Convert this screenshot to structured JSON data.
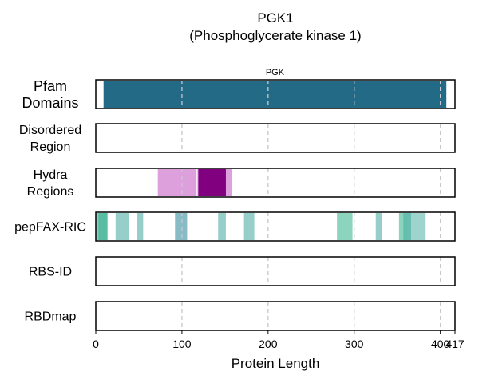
{
  "chart_data": {
    "type": "protein-domain-tracks",
    "title_line1": "PGK1",
    "title_line2": "(Phosphoglycerate kinase 1)",
    "xlabel": "Protein Length",
    "xlim": [
      0,
      417
    ],
    "xticks": [
      0,
      100,
      200,
      300,
      400,
      417
    ],
    "gridlines": [
      100,
      200,
      300,
      400
    ],
    "tracks": [
      {
        "name": "pfam",
        "label_lines": [
          "Pfam",
          "Domains"
        ],
        "segments": [
          {
            "start": 9,
            "end": 407,
            "color": "#236a86",
            "opacity": 1,
            "label": "PGK"
          }
        ]
      },
      {
        "name": "disordered",
        "label_lines": [
          "Disordered",
          "Region"
        ],
        "segments": []
      },
      {
        "name": "hydra",
        "label_lines": [
          "Hydra",
          "Regions"
        ],
        "segments": [
          {
            "start": 72,
            "end": 117,
            "color": "#dda0dd",
            "opacity": 1
          },
          {
            "start": 118,
            "end": 158,
            "color": "#dda0dd",
            "opacity": 1
          },
          {
            "start": 119,
            "end": 151,
            "color": "#800080",
            "opacity": 1
          }
        ]
      },
      {
        "name": "pepfax",
        "label_lines": [
          "pepFAX-RIC"
        ],
        "segments": [
          {
            "start": 0,
            "end": 14,
            "color": "#3fa89d",
            "opacity": 0.55
          },
          {
            "start": 3,
            "end": 13,
            "color": "#2fb08a",
            "opacity": 0.6
          },
          {
            "start": 23,
            "end": 38,
            "color": "#3fa89d",
            "opacity": 0.55
          },
          {
            "start": 48,
            "end": 55,
            "color": "#3fa89d",
            "opacity": 0.55
          },
          {
            "start": 92,
            "end": 106,
            "color": "#3fa89d",
            "opacity": 0.55
          },
          {
            "start": 92,
            "end": 106,
            "color": "#6e8fbf",
            "opacity": 0.3
          },
          {
            "start": 142,
            "end": 151,
            "color": "#3fa89d",
            "opacity": 0.55
          },
          {
            "start": 172,
            "end": 184,
            "color": "#3fa89d",
            "opacity": 0.55
          },
          {
            "start": 280,
            "end": 298,
            "color": "#2fb08a",
            "opacity": 0.55
          },
          {
            "start": 325,
            "end": 332,
            "color": "#3fa89d",
            "opacity": 0.55
          },
          {
            "start": 352,
            "end": 366,
            "color": "#2fb08a",
            "opacity": 0.55
          },
          {
            "start": 357,
            "end": 382,
            "color": "#3fa89d",
            "opacity": 0.5
          }
        ]
      },
      {
        "name": "rbs-id",
        "label_lines": [
          "RBS-ID"
        ],
        "segments": []
      },
      {
        "name": "rbdmap",
        "label_lines": [
          "RBDmap"
        ],
        "segments": []
      }
    ]
  }
}
